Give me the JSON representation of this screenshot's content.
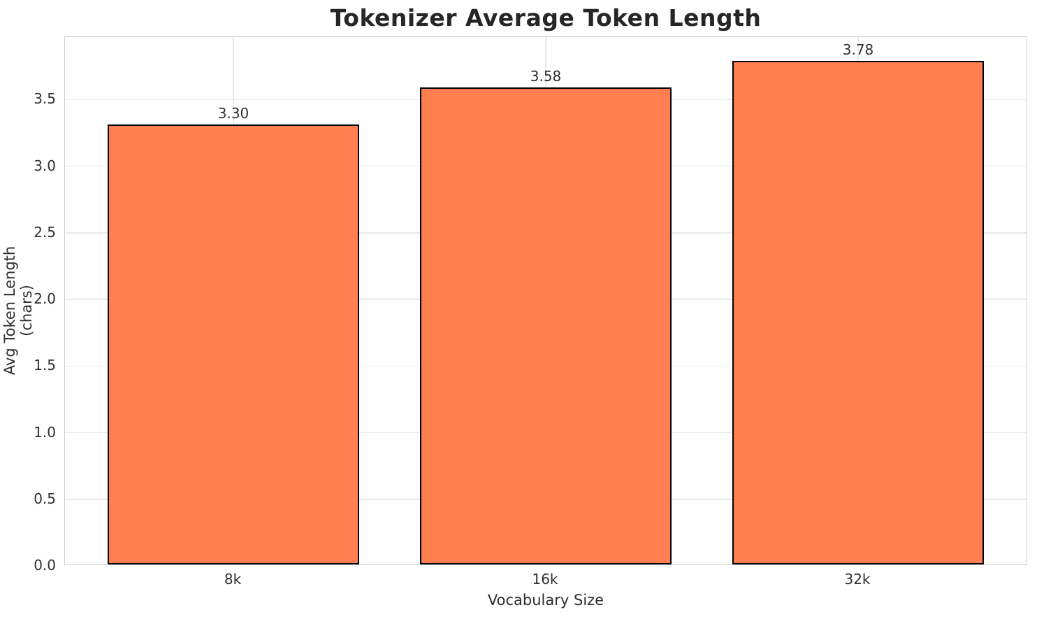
{
  "figure": {
    "background_color": "#ffffff",
    "text_color": "#2e2e2e"
  },
  "chart_data": {
    "type": "bar",
    "title": "Tokenizer Average Token Length",
    "xlabel": "Vocabulary Size",
    "ylabel": "Avg Token Length (chars)",
    "categories": [
      "8k",
      "16k",
      "32k"
    ],
    "values": [
      3.3,
      3.58,
      3.78
    ],
    "value_labels": [
      "3.30",
      "3.58",
      "3.78"
    ],
    "ylim": [
      0,
      3.969
    ],
    "yticks": [
      0.0,
      0.5,
      1.0,
      1.5,
      2.0,
      2.5,
      3.0,
      3.5
    ],
    "ytick_labels": [
      "0.0",
      "0.5",
      "1.0",
      "1.5",
      "2.0",
      "2.5",
      "3.0",
      "3.5"
    ],
    "grid": true,
    "grid_axes": "both",
    "legend_position": "none",
    "bar_color": "#FF7F50",
    "bar_edge_color": "#000000",
    "grid_color": "#e9e9e9",
    "spine_color": "#cfcfcf"
  }
}
